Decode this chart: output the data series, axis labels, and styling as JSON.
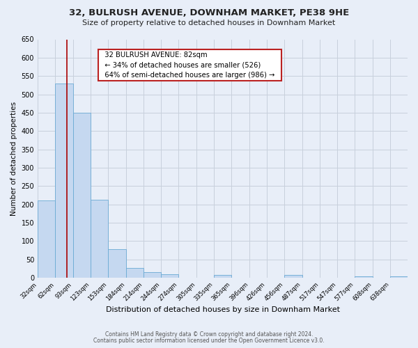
{
  "title": "32, BULRUSH AVENUE, DOWNHAM MARKET, PE38 9HE",
  "subtitle": "Size of property relative to detached houses in Downham Market",
  "xlabel": "Distribution of detached houses by size in Downham Market",
  "ylabel": "Number of detached properties",
  "bar_labels": [
    "32sqm",
    "62sqm",
    "93sqm",
    "123sqm",
    "153sqm",
    "184sqm",
    "214sqm",
    "244sqm",
    "274sqm",
    "305sqm",
    "335sqm",
    "365sqm",
    "396sqm",
    "426sqm",
    "456sqm",
    "487sqm",
    "517sqm",
    "547sqm",
    "577sqm",
    "608sqm",
    "638sqm"
  ],
  "bar_values": [
    210,
    530,
    450,
    213,
    78,
    27,
    15,
    10,
    0,
    0,
    8,
    0,
    0,
    0,
    8,
    0,
    0,
    0,
    5,
    0,
    5
  ],
  "bar_edges": [
    32,
    62,
    93,
    123,
    153,
    184,
    214,
    244,
    274,
    305,
    335,
    365,
    396,
    426,
    456,
    487,
    517,
    547,
    577,
    608,
    638,
    668
  ],
  "bar_color": "#c5d8f0",
  "bar_edge_color": "#6aaad4",
  "vline_x": 82,
  "vline_color": "#aa0000",
  "annotation_title": "32 BULRUSH AVENUE: 82sqm",
  "annotation_line1": "← 34% of detached houses are smaller (526)",
  "annotation_line2": "64% of semi-detached houses are larger (986) →",
  "annotation_box_color": "#ffffff",
  "annotation_box_edge": "#bb2222",
  "ylim": [
    0,
    650
  ],
  "yticks": [
    0,
    50,
    100,
    150,
    200,
    250,
    300,
    350,
    400,
    450,
    500,
    550,
    600,
    650
  ],
  "footer1": "Contains HM Land Registry data © Crown copyright and database right 2024.",
  "footer2": "Contains public sector information licensed under the Open Government Licence v3.0.",
  "bg_color": "#e8eef8",
  "plot_bg_color": "#e8eef8",
  "grid_color": "#c8d0dc"
}
